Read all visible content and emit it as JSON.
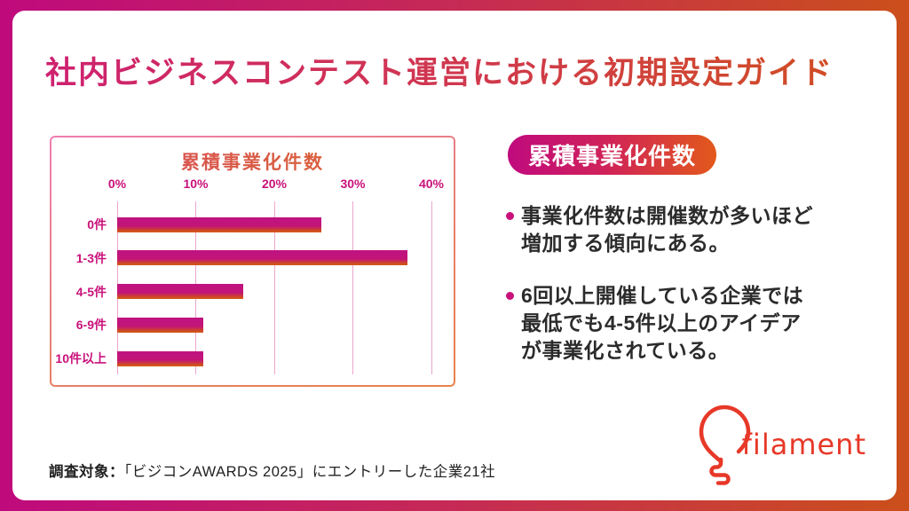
{
  "page": {
    "title": "社内ビジネスコンテスト運営における初期設定ガイド"
  },
  "chart_data": {
    "type": "bar",
    "orientation": "horizontal",
    "title": "累積事業化件数",
    "categories": [
      "0件",
      "1-3件",
      "4-5件",
      "6-9件",
      "10件以上"
    ],
    "values": [
      26,
      37,
      16,
      11,
      11
    ],
    "unit": "%",
    "x_ticks": [
      "0%",
      "10%",
      "20%",
      "30%",
      "40%"
    ],
    "xlim": [
      0,
      40
    ],
    "grid": "vertical-only",
    "legend": "none",
    "bar_gradient": [
      "#c21380",
      "#d2591d"
    ]
  },
  "panel": {
    "badge": "累積事業化件数",
    "bullets": [
      "事業化件数は開催数が多いほど\n増加する傾向にある。",
      "6回以上開催している企業では\n最低でも4-5件以上のアイデア\nが事業化されている。"
    ]
  },
  "footer": {
    "label": "調査対象：",
    "text": "「ビジコンAWARDS 2025」にエントリーした企業21社"
  },
  "logo": {
    "text": "filament"
  },
  "colors": {
    "frame_gradient_left": "#bf0a7d",
    "frame_gradient_right": "#cb4f1b",
    "axis_magenta": "#c9117b",
    "title_gradient": [
      "#ce2170",
      "#d04f20"
    ],
    "body_text": "#2b2b2b",
    "logo_red": "#e73828"
  }
}
